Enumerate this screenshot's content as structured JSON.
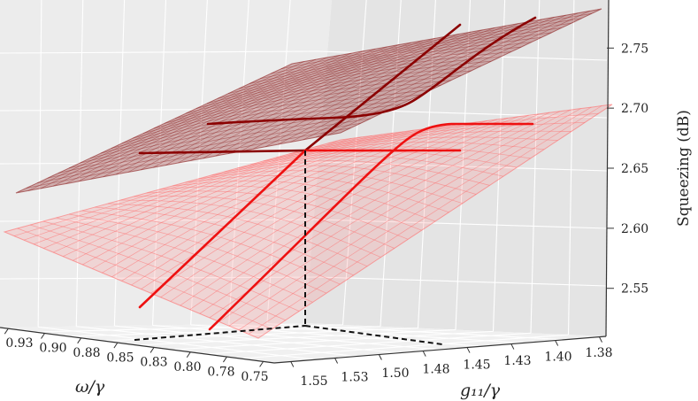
{
  "chart_data": {
    "type": "surface-3d",
    "title": "",
    "axes": {
      "x": {
        "label": "ω/γ",
        "ticks": [
          "0.93",
          "0.90",
          "0.88",
          "0.85",
          "0.83",
          "0.80",
          "0.78",
          "0.75"
        ]
      },
      "y": {
        "label": "g₁₁/γ",
        "ticks": [
          "1.55",
          "1.53",
          "1.50",
          "1.48",
          "1.45",
          "1.43",
          "1.40",
          "1.38"
        ]
      },
      "z": {
        "label": "Squeezing (dB)",
        "ticks": [
          "2.55",
          "2.60",
          "2.65",
          "2.70",
          "2.75"
        ],
        "range": [
          2.51,
          2.79
        ]
      }
    },
    "surfaces": [
      {
        "name": "upper",
        "color": "#8b1a1a"
      },
      {
        "name": "lower",
        "color": "#ff6b6b"
      }
    ],
    "line_colors": {
      "dark": "#8b0000",
      "bright": "#ee1111"
    },
    "marked_point": {
      "omega": 0.85,
      "g11": 1.48,
      "squeezing": 2.66
    },
    "grid": true
  }
}
